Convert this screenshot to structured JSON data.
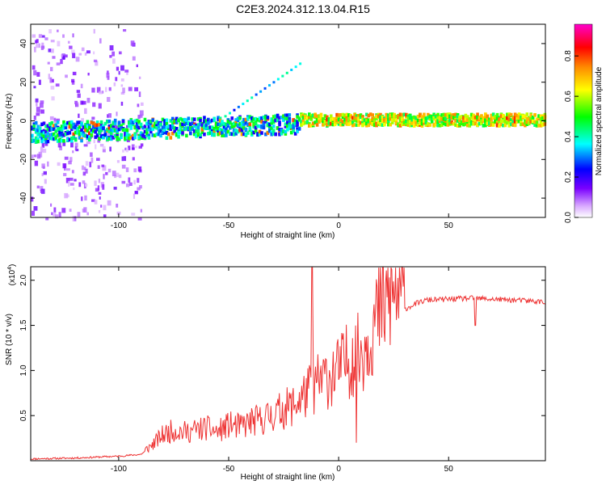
{
  "title": "C2E3.2024.312.13.04.R15",
  "colors": {
    "snr_line": "#ee3333",
    "axes": "#000000",
    "background": "#ffffff"
  },
  "chart_data": [
    {
      "type": "heatmap",
      "xlabel": "Height of straight line (km)",
      "ylabel": "Frequency (Hz)",
      "xlim": [
        -140,
        94
      ],
      "ylim": [
        -50,
        50
      ],
      "xticks": [
        -100,
        -50,
        0,
        50
      ],
      "yticks": [
        -40,
        -20,
        0,
        20,
        40
      ],
      "colorbar": {
        "label": "Normalized spectral amplitude",
        "range": [
          0,
          1
        ],
        "ticks": [
          "0.0",
          "0.2",
          "0.4",
          "0.6",
          "0.8"
        ],
        "colormap": "rainbow: white, violet, blue, cyan, green, yellow, orange, red, magenta"
      },
      "grid": false
    },
    {
      "type": "line",
      "xlabel": "Height of straight line (km)",
      "ylabel": "SNR (10 * v/v)",
      "multiplier": "(x10",
      "multiplier_exp": "4",
      "xlim": [
        -140,
        94
      ],
      "ylim": [
        0,
        2.15
      ],
      "xticks": [
        -100,
        -50,
        0,
        50
      ],
      "yticks": [
        "0.5",
        "1.0",
        "1.5",
        "2.0"
      ],
      "grid": false,
      "series": [
        {
          "x": [
            -140,
            -120,
            -100,
            -90,
            -85,
            -80,
            -75,
            -70,
            -65,
            -60,
            -55,
            -50,
            -45,
            -40,
            -35,
            -30,
            -25,
            -20,
            -15,
            -10,
            -5,
            0,
            5,
            10,
            15,
            20,
            25,
            30,
            35,
            40,
            50,
            60,
            70,
            80,
            94
          ],
          "y": [
            0.02,
            0.03,
            0.05,
            0.07,
            0.15,
            0.25,
            0.3,
            0.28,
            0.3,
            0.32,
            0.28,
            0.35,
            0.33,
            0.38,
            0.4,
            0.45,
            0.5,
            0.55,
            0.65,
            0.75,
            0.82,
            0.88,
            1.0,
            1.05,
            1.3,
            1.5,
            1.62,
            1.68,
            1.74,
            1.78,
            1.79,
            1.8,
            1.79,
            1.78,
            1.76
          ]
        }
      ]
    }
  ]
}
